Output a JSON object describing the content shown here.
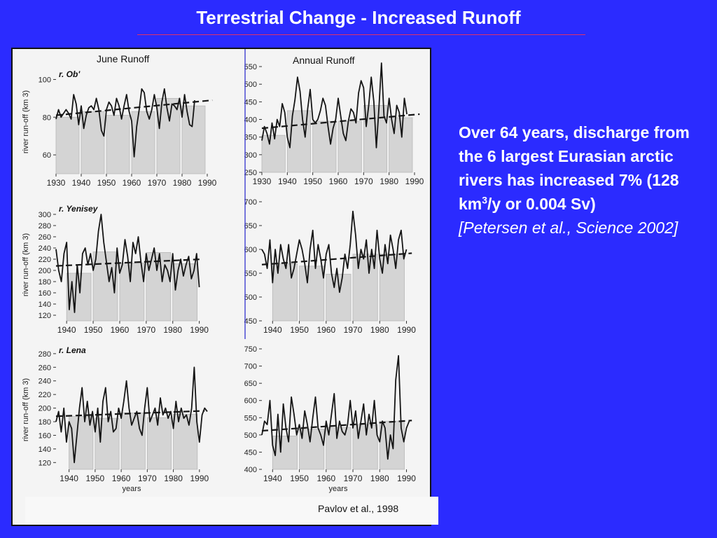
{
  "slide": {
    "title": "Terrestrial Change - Increased Runoff",
    "body_pre": "Over 64 years, discharge from the 6 largest Eurasian arctic rivers has increased 7% (128 km",
    "body_sup": "3",
    "body_post": "/y or 0.004 Sv)",
    "citation": "[Petersen et al., Science 2002]"
  },
  "figure": {
    "col_june": "June Runoff",
    "col_annual": "Annual Runoff",
    "source": "Pavlov et al., 1998",
    "colors": {
      "line": "#151515",
      "bar": "#d4d4d4",
      "trend": "#151515",
      "divider": "#2222cc"
    }
  },
  "chart_data": [
    {
      "type": "line",
      "river": "r. Ob'",
      "ylabel": "river run-off (km 3)",
      "xlabel": "",
      "xlim": [
        1930,
        1990
      ],
      "xticks": [
        1930,
        1940,
        1950,
        1960,
        1970,
        1980,
        1990
      ],
      "ylim": [
        50,
        105
      ],
      "yticks": [
        60,
        80,
        100
      ],
      "x_start": 1930,
      "values": [
        79,
        84,
        80,
        82,
        84,
        82,
        79,
        92,
        87,
        76,
        86,
        74,
        81,
        85,
        86,
        84,
        90,
        84,
        73,
        70,
        84,
        88,
        86,
        81,
        90,
        86,
        79,
        86,
        92,
        83,
        78,
        59,
        75,
        84,
        95,
        93,
        83,
        79,
        84,
        92,
        85,
        74,
        88,
        95,
        85,
        78,
        87,
        86,
        84,
        90,
        80,
        92,
        83,
        76,
        75,
        89
      ],
      "bar_blocks": [
        {
          "from": 1930,
          "to": 1939,
          "value": 80
        },
        {
          "from": 1940,
          "to": 1949,
          "value": 83
        },
        {
          "from": 1950,
          "to": 1959,
          "value": 81
        },
        {
          "from": 1960,
          "to": 1969,
          "value": 83
        },
        {
          "from": 1970,
          "to": 1979,
          "value": 90
        },
        {
          "from": 1980,
          "to": 1989,
          "value": 86
        }
      ],
      "trend": [
        [
          1930,
          81
        ],
        [
          1992,
          89
        ]
      ]
    },
    {
      "type": "line",
      "river": "r. Ob'",
      "ylabel": "",
      "xlabel": "",
      "xlim": [
        1930,
        1990
      ],
      "xticks": [
        1930,
        1940,
        1950,
        1960,
        1970,
        1980,
        1990
      ],
      "ylim": [
        250,
        560
      ],
      "yticks": [
        250,
        300,
        350,
        400,
        450,
        500,
        550
      ],
      "x_start": 1930,
      "values": [
        340,
        380,
        360,
        330,
        390,
        345,
        400,
        380,
        445,
        420,
        350,
        320,
        410,
        455,
        520,
        480,
        400,
        350,
        430,
        485,
        400,
        390,
        400,
        425,
        460,
        440,
        380,
        330,
        375,
        400,
        460,
        410,
        360,
        340,
        395,
        430,
        420,
        390,
        475,
        510,
        490,
        380,
        440,
        520,
        450,
        320,
        430,
        560,
        410,
        390,
        460,
        400,
        360,
        440,
        420,
        350,
        460,
        415
      ],
      "bar_blocks": [
        {
          "from": 1930,
          "to": 1939,
          "value": 355
        },
        {
          "from": 1940,
          "to": 1949,
          "value": 425
        },
        {
          "from": 1950,
          "to": 1959,
          "value": 395
        },
        {
          "from": 1960,
          "to": 1969,
          "value": 395
        },
        {
          "from": 1970,
          "to": 1979,
          "value": 440
        },
        {
          "from": 1980,
          "to": 1989,
          "value": 405
        }
      ],
      "trend": [
        [
          1930,
          375
        ],
        [
          1992,
          415
        ]
      ]
    },
    {
      "type": "line",
      "river": "r. Yenisey",
      "ylabel": "river run-off (km 3)",
      "xlabel": "",
      "xlim": [
        1936,
        1993
      ],
      "xticks": [
        1940,
        1950,
        1960,
        1970,
        1980,
        1990
      ],
      "ylim": [
        110,
        310
      ],
      "yticks": [
        120,
        140,
        160,
        180,
        200,
        220,
        240,
        260,
        280,
        300
      ],
      "x_start": 1936,
      "values": [
        238,
        200,
        180,
        230,
        250,
        130,
        180,
        125,
        210,
        160,
        230,
        240,
        210,
        230,
        200,
        220,
        270,
        300,
        250,
        215,
        180,
        205,
        160,
        240,
        195,
        210,
        255,
        225,
        180,
        250,
        230,
        260,
        215,
        180,
        230,
        200,
        220,
        240,
        200,
        230,
        180,
        210,
        200,
        180,
        230,
        165,
        200,
        220,
        190,
        210,
        225,
        185,
        200,
        230,
        170
      ],
      "bar_blocks": [
        {
          "from": 1940,
          "to": 1949,
          "value": 195
        },
        {
          "from": 1950,
          "to": 1959,
          "value": 233
        },
        {
          "from": 1960,
          "to": 1969,
          "value": 213
        },
        {
          "from": 1970,
          "to": 1979,
          "value": 232
        },
        {
          "from": 1980,
          "to": 1989,
          "value": 212
        }
      ],
      "trend": [
        [
          1936,
          208
        ],
        [
          1991,
          220
        ]
      ]
    },
    {
      "type": "line",
      "river": "r. Yenisey",
      "ylabel": "",
      "xlabel": "",
      "xlim": [
        1936,
        1993
      ],
      "xticks": [
        1940,
        1950,
        1960,
        1970,
        1980,
        1990
      ],
      "ylim": [
        450,
        700
      ],
      "yticks": [
        450,
        500,
        550,
        600,
        650,
        700
      ],
      "x_start": 1936,
      "values": [
        600,
        590,
        560,
        620,
        530,
        600,
        550,
        610,
        580,
        560,
        610,
        540,
        560,
        590,
        620,
        600,
        570,
        530,
        600,
        640,
        560,
        610,
        580,
        540,
        590,
        610,
        550,
        520,
        560,
        510,
        540,
        590,
        560,
        610,
        680,
        630,
        560,
        600,
        580,
        620,
        550,
        600,
        560,
        640,
        580,
        550,
        610,
        570,
        630,
        600,
        560,
        620,
        640,
        580,
        600
      ],
      "bar_blocks": [
        {
          "from": 1940,
          "to": 1949,
          "value": 570
        },
        {
          "from": 1950,
          "to": 1959,
          "value": 565
        },
        {
          "from": 1960,
          "to": 1969,
          "value": 548
        },
        {
          "from": 1970,
          "to": 1979,
          "value": 590
        },
        {
          "from": 1980,
          "to": 1989,
          "value": 590
        }
      ],
      "trend": [
        [
          1936,
          568
        ],
        [
          1992,
          592
        ]
      ]
    },
    {
      "type": "line",
      "river": "r. Lena",
      "ylabel": "river run-off (km 3)",
      "xlabel": "years",
      "xlim": [
        1935,
        1993
      ],
      "xticks": [
        1940,
        1950,
        1960,
        1970,
        1980,
        1990
      ],
      "ylim": [
        110,
        285
      ],
      "yticks": [
        120,
        140,
        160,
        180,
        200,
        220,
        240,
        260,
        280
      ],
      "x_start": 1935,
      "values": [
        180,
        195,
        165,
        200,
        150,
        180,
        170,
        120,
        160,
        200,
        230,
        180,
        210,
        175,
        195,
        165,
        200,
        150,
        210,
        230,
        180,
        195,
        165,
        170,
        200,
        185,
        210,
        240,
        200,
        175,
        185,
        195,
        170,
        160,
        200,
        230,
        180,
        190,
        200,
        175,
        215,
        190,
        200,
        185,
        195,
        170,
        210,
        180,
        200,
        185,
        190,
        175,
        200,
        260,
        180,
        150,
        190,
        200,
        195
      ],
      "bar_blocks": [
        {
          "from": 1940,
          "to": 1949,
          "value": 188
        },
        {
          "from": 1950,
          "to": 1959,
          "value": 185
        },
        {
          "from": 1960,
          "to": 1969,
          "value": 193
        },
        {
          "from": 1970,
          "to": 1979,
          "value": 186
        },
        {
          "from": 1980,
          "to": 1989,
          "value": 191
        }
      ],
      "trend": [
        [
          1935,
          188
        ],
        [
          1992,
          196
        ]
      ]
    },
    {
      "type": "line",
      "river": "r. Lena",
      "ylabel": "",
      "xlabel": "years",
      "xlim": [
        1936,
        1993
      ],
      "xticks": [
        1940,
        1950,
        1960,
        1970,
        1980,
        1990
      ],
      "ylim": [
        400,
        750
      ],
      "yticks": [
        400,
        450,
        500,
        550,
        600,
        650,
        700,
        750
      ],
      "x_start": 1936,
      "values": [
        500,
        540,
        530,
        600,
        470,
        440,
        560,
        450,
        590,
        520,
        480,
        610,
        560,
        500,
        530,
        490,
        570,
        530,
        480,
        550,
        610,
        520,
        500,
        470,
        540,
        500,
        560,
        620,
        490,
        540,
        510,
        500,
        530,
        600,
        520,
        570,
        490,
        540,
        590,
        500,
        560,
        520,
        600,
        500,
        480,
        540,
        520,
        430,
        500,
        460,
        660,
        730,
        520,
        480,
        520,
        540
      ],
      "bar_blocks": [
        {
          "from": 1940,
          "to": 1949,
          "value": 497
        },
        {
          "from": 1950,
          "to": 1959,
          "value": 517
        },
        {
          "from": 1960,
          "to": 1969,
          "value": 522
        },
        {
          "from": 1970,
          "to": 1979,
          "value": 530
        },
        {
          "from": 1980,
          "to": 1989,
          "value": 540
        }
      ],
      "trend": [
        [
          1936,
          512
        ],
        [
          1992,
          542
        ]
      ]
    }
  ]
}
